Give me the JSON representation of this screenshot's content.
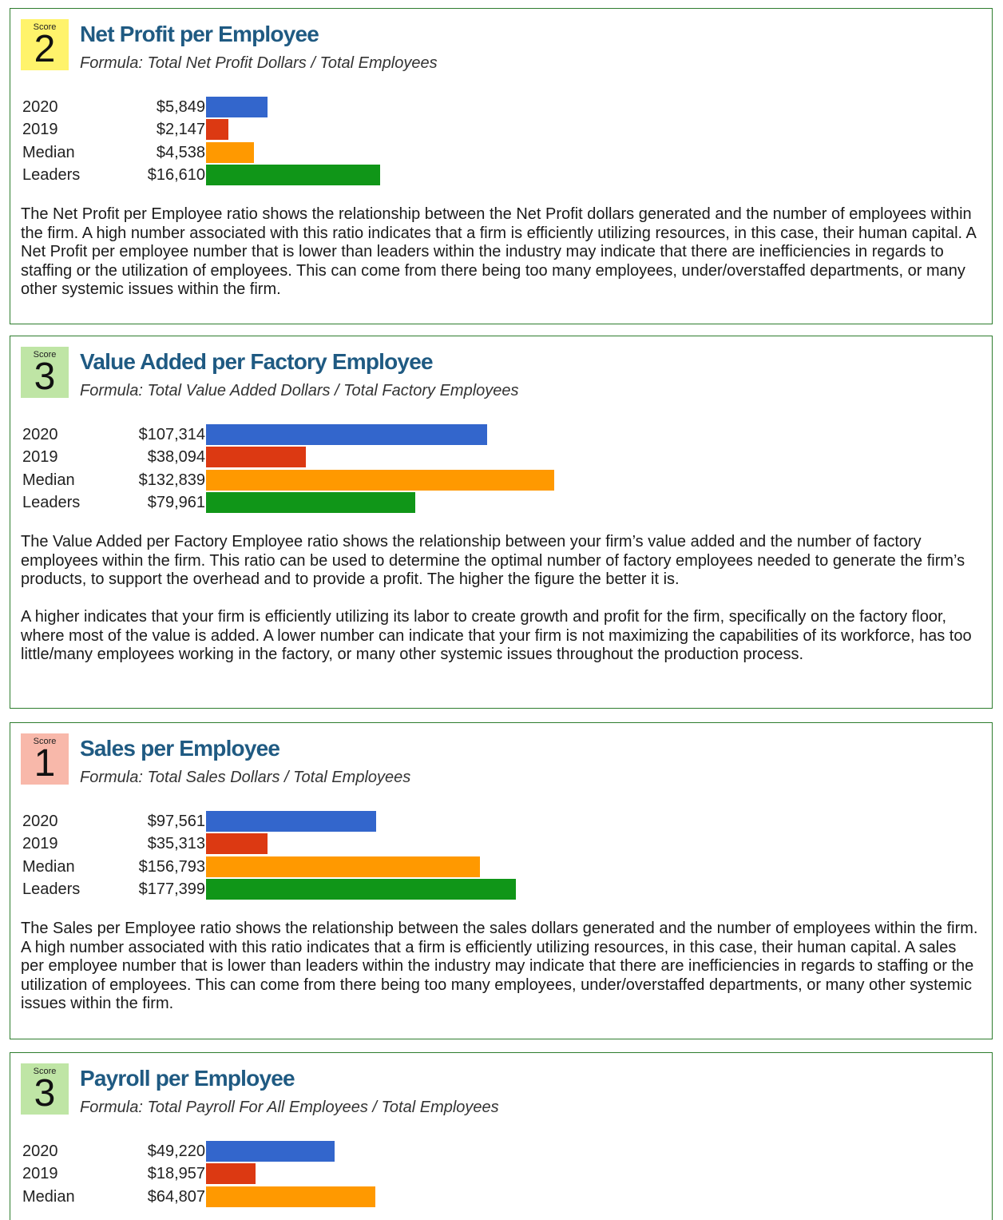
{
  "colors": {
    "2020": "#3366cc",
    "2019": "#dc3912",
    "Median": "#ff9900",
    "Leaders": "#109618",
    "border": "#2e7d2e",
    "title": "#1f5a82"
  },
  "score_colors": {
    "1": "#f8b8aa",
    "2": "#fff36b",
    "3": "#bfe5a5"
  },
  "score_label": "Score",
  "chart_data": [
    {
      "type": "bar",
      "orientation": "horizontal",
      "title": "Net Profit per Employee",
      "subtitle": "Formula: Total Net Profit Dollars / Total Employees",
      "score": "2",
      "categories": [
        "2020",
        "2019",
        "Median",
        "Leaders"
      ],
      "values": [
        5849,
        2147,
        4538,
        16610
      ],
      "labels": [
        "$5,849",
        "$2,147",
        "$4,538",
        "$16,610"
      ],
      "xlim": [
        0,
        16610
      ],
      "description": [
        "The Net Profit per Employee ratio shows the relationship between the Net Profit dollars generated and the number of employees within the firm. A high number associated with this ratio indicates that a firm is efficiently utilizing resources, in this case, their human capital. A Net Profit per employee number that is lower than leaders within the industry may indicate that there are inefficiencies in regards to staffing or the utilization of employees. This can come from there being too many employees, under/overstaffed departments, or many other systemic issues within the firm."
      ]
    },
    {
      "type": "bar",
      "orientation": "horizontal",
      "title": "Value Added per Factory Employee",
      "subtitle": "Formula: Total Value Added Dollars / Total Factory Employees",
      "score": "3",
      "categories": [
        "2020",
        "2019",
        "Median",
        "Leaders"
      ],
      "values": [
        107314,
        38094,
        132839,
        79961
      ],
      "labels": [
        "$107,314",
        "$38,094",
        "$132,839",
        "$79,961"
      ],
      "xlim": [
        0,
        132839
      ],
      "description": [
        "The Value Added per Factory Employee ratio shows the relationship between your firm’s value added and the number of factory employees within the firm. This ratio can be used to determine the optimal number of factory employees needed to generate the firm’s products, to support the overhead and to provide a profit. The higher the figure the better it is.",
        "A higher indicates that your firm is efficiently utilizing its labor to create growth and profit for the firm, specifically on the factory floor, where most of the value is added. A lower number can indicate that your firm is not maximizing the capabilities of its workforce, has too little/many employees working in the factory, or many other systemic issues throughout the production process."
      ]
    },
    {
      "type": "bar",
      "orientation": "horizontal",
      "title": "Sales per Employee",
      "subtitle": "Formula: Total Sales Dollars / Total Employees",
      "score": "1",
      "categories": [
        "2020",
        "2019",
        "Median",
        "Leaders"
      ],
      "values": [
        97561,
        35313,
        156793,
        177399
      ],
      "labels": [
        "$97,561",
        "$35,313",
        "$156,793",
        "$177,399"
      ],
      "xlim": [
        0,
        177399
      ],
      "description": [
        "The Sales per Employee ratio shows the relationship between the sales dollars generated and the number of employees within the firm. A high number associated with this ratio indicates that a firm is efficiently utilizing resources, in this case, their human capital. A sales per employee number that is lower than leaders within the industry may indicate that there are inefficiencies in regards to staffing or the utilization of employees. This can come from there being too many employees, under/overstaffed departments, or many other systemic issues within the firm."
      ]
    },
    {
      "type": "bar",
      "orientation": "horizontal",
      "title": "Payroll per Employee",
      "subtitle": "Formula: Total Payroll For All Employees / Total Employees",
      "score": "3",
      "categories": [
        "2020",
        "2019",
        "Median"
      ],
      "values": [
        49220,
        18957,
        64807
      ],
      "labels": [
        "$49,220",
        "$18,957",
        "$64,807"
      ],
      "description": []
    }
  ]
}
